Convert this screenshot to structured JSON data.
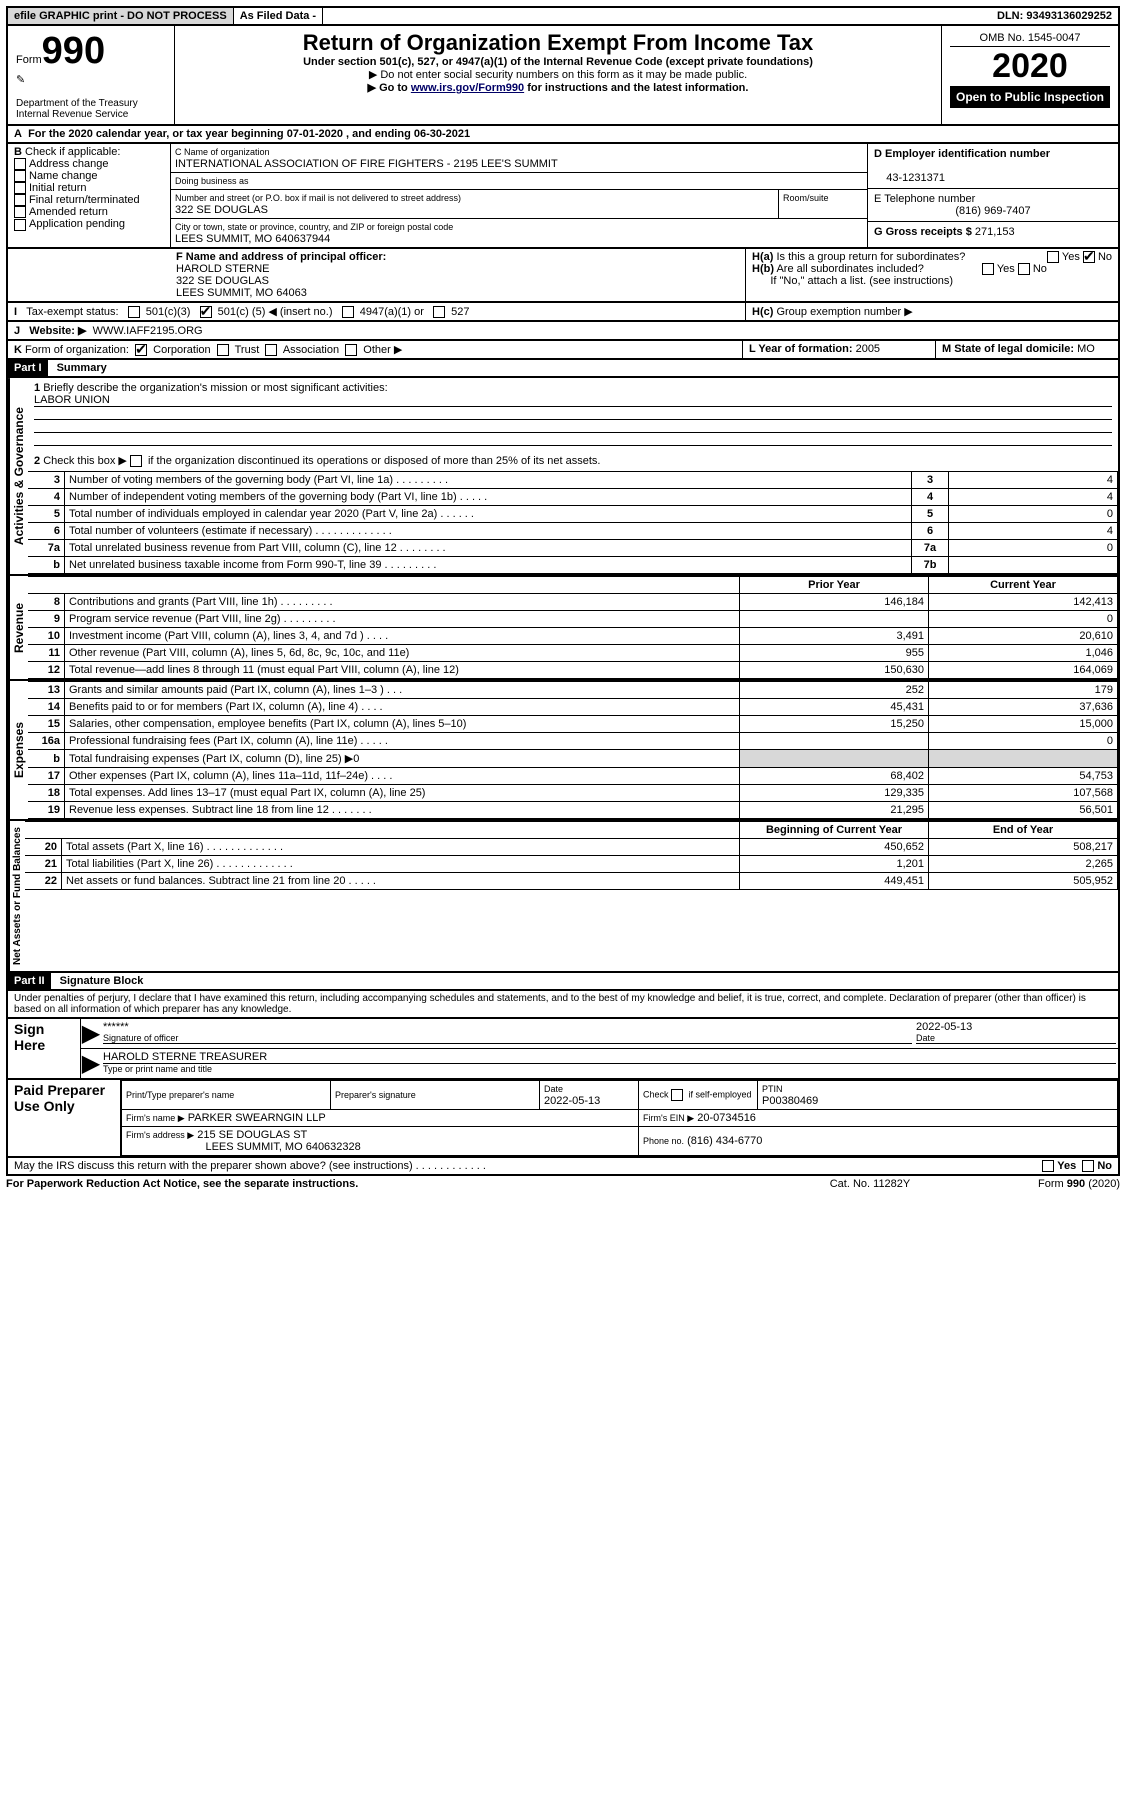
{
  "topbar": {
    "efile": "efile GRAPHIC print - DO NOT PROCESS",
    "asfiled": "As Filed Data -",
    "dln_label": "DLN:",
    "dln": "93493136029252"
  },
  "header": {
    "form_label": "Form",
    "form_number": "990",
    "dept": "Department of the Treasury",
    "irs": "Internal Revenue Service",
    "title": "Return of Organization Exempt From Income Tax",
    "subtitle": "Under section 501(c), 527, or 4947(a)(1) of the Internal Revenue Code (except private foundations)",
    "note1": "▶ Do not enter social security numbers on this form as it may be made public.",
    "note2_pre": "▶ Go to ",
    "note2_link": "www.irs.gov/Form990",
    "note2_post": " for instructions and the latest information.",
    "omb": "OMB No. 1545-0047",
    "year": "2020",
    "open": "Open to Public Inspection"
  },
  "A": {
    "text_pre": "For the 2020 calendar year, or tax year beginning ",
    "begin": "07-01-2020",
    "mid": " , and ending ",
    "end": "06-30-2021"
  },
  "B": {
    "label": "Check if applicable:",
    "opts": [
      "Address change",
      "Name change",
      "Initial return",
      "Final return/terminated",
      "Amended return",
      "Application pending"
    ]
  },
  "C": {
    "name_label": "C Name of organization",
    "name": "INTERNATIONAL ASSOCIATION OF FIRE FIGHTERS - 2195 LEE'S SUMMIT",
    "dba_label": "Doing business as",
    "street_label": "Number and street (or P.O. box if mail is not delivered to street address)",
    "room_label": "Room/suite",
    "street": "322 SE DOUGLAS",
    "city_label": "City or town, state or province, country, and ZIP or foreign postal code",
    "city": "LEES SUMMIT, MO  640637944"
  },
  "D": {
    "label": "D Employer identification number",
    "value": "43-1231371"
  },
  "E": {
    "label": "E Telephone number",
    "value": "(816) 969-7407"
  },
  "G": {
    "label": "G Gross receipts $",
    "value": "271,153"
  },
  "F": {
    "label": "F  Name and address of principal officer:",
    "name": "HAROLD STERNE",
    "street": "322 SE DOUGLAS",
    "city": "LEES SUMMIT, MO  64063"
  },
  "H": {
    "a": "Is this a group return for subordinates?",
    "a_yes": "Yes",
    "a_no": "No",
    "b": "Are all subordinates included?",
    "b_yes": "Yes",
    "b_no": "No",
    "b_note": "If \"No,\" attach a list. (see instructions)",
    "c": "Group exemption number ▶"
  },
  "I": {
    "label": "Tax-exempt status:",
    "o1": "501(c)(3)",
    "o2_pre": "501(c) (",
    "o2_num": "5",
    "o2_post": ") ◀ (insert no.)",
    "o3": "4947(a)(1) or",
    "o4": "527"
  },
  "J": {
    "label": "Website: ▶",
    "value": "WWW.IAFF2195.ORG"
  },
  "K": {
    "label": "Form of organization:",
    "opts": [
      "Corporation",
      "Trust",
      "Association",
      "Other ▶"
    ]
  },
  "L": {
    "label": "L Year of formation:",
    "value": "2005"
  },
  "M": {
    "label": "M State of legal domicile:",
    "value": "MO"
  },
  "partI": {
    "header": "Part I",
    "title": "Summary",
    "l1": "Briefly describe the organization's mission or most significant activities:",
    "l1v": "LABOR UNION",
    "l2": "Check this box ▶         if the organization discontinued its operations or disposed of more than 25% of its net assets.",
    "lines": [
      {
        "n": "3",
        "t": "Number of voting members of the governing body (Part VI, line 1a)   .   .   .   .   .   .   .   .   .",
        "ln": "3",
        "v": "4"
      },
      {
        "n": "4",
        "t": "Number of independent voting members of the governing body (Part VI, line 1b)   .   .   .   .   .",
        "ln": "4",
        "v": "4"
      },
      {
        "n": "5",
        "t": "Total number of individuals employed in calendar year 2020 (Part V, line 2a)   .   .   .   .   .   .",
        "ln": "5",
        "v": "0"
      },
      {
        "n": "6",
        "t": "Total number of volunteers (estimate if necessary)   .   .   .   .   .   .   .   .   .   .   .   .   .",
        "ln": "6",
        "v": "4"
      },
      {
        "n": "7a",
        "t": "Total unrelated business revenue from Part VIII, column (C), line 12   .   .   .   .   .   .   .   .",
        "ln": "7a",
        "v": "0"
      },
      {
        "n": "b",
        "t": "Net unrelated business taxable income from Form 990-T, line 39   .   .   .   .   .   .   .   .   .",
        "ln": "7b",
        "v": ""
      }
    ],
    "prior": "Prior Year",
    "current": "Current Year",
    "rev": [
      {
        "n": "8",
        "t": "Contributions and grants (Part VIII, line 1h)   .   .   .   .   .   .   .   .   .",
        "p": "146,184",
        "c": "142,413"
      },
      {
        "n": "9",
        "t": "Program service revenue (Part VIII, line 2g)   .   .   .   .   .   .   .   .   .",
        "p": "",
        "c": "0"
      },
      {
        "n": "10",
        "t": "Investment income (Part VIII, column (A), lines 3, 4, and 7d )   .   .   .   .",
        "p": "3,491",
        "c": "20,610"
      },
      {
        "n": "11",
        "t": "Other revenue (Part VIII, column (A), lines 5, 6d, 8c, 9c, 10c, and 11e)",
        "p": "955",
        "c": "1,046"
      },
      {
        "n": "12",
        "t": "Total revenue—add lines 8 through 11 (must equal Part VIII, column (A), line 12)",
        "p": "150,630",
        "c": "164,069"
      }
    ],
    "exp": [
      {
        "n": "13",
        "t": "Grants and similar amounts paid (Part IX, column (A), lines 1–3 )   .   .   .",
        "p": "252",
        "c": "179"
      },
      {
        "n": "14",
        "t": "Benefits paid to or for members (Part IX, column (A), line 4)   .   .   .   .",
        "p": "45,431",
        "c": "37,636"
      },
      {
        "n": "15",
        "t": "Salaries, other compensation, employee benefits (Part IX, column (A), lines 5–10)",
        "p": "15,250",
        "c": "15,000"
      },
      {
        "n": "16a",
        "t": "Professional fundraising fees (Part IX, column (A), line 11e)   .   .   .   .   .",
        "p": "",
        "c": "0"
      },
      {
        "n": "b",
        "t": "Total fundraising expenses (Part IX, column (D), line 25) ▶0",
        "p": "",
        "c": "",
        "shadep": true,
        "shadec": true
      },
      {
        "n": "17",
        "t": "Other expenses (Part IX, column (A), lines 11a–11d, 11f–24e)   .   .   .   .",
        "p": "68,402",
        "c": "54,753"
      },
      {
        "n": "18",
        "t": "Total expenses. Add lines 13–17 (must equal Part IX, column (A), line 25)",
        "p": "129,335",
        "c": "107,568"
      },
      {
        "n": "19",
        "t": "Revenue less expenses. Subtract line 18 from line 12 .   .   .   .   .   .   .",
        "p": "21,295",
        "c": "56,501"
      }
    ],
    "begin": "Beginning of Current Year",
    "end": "End of Year",
    "net": [
      {
        "n": "20",
        "t": "Total assets (Part X, line 16)  .   .   .   .   .   .   .   .   .   .   .   .   .",
        "p": "450,652",
        "c": "508,217"
      },
      {
        "n": "21",
        "t": "Total liabilities (Part X, line 26) .   .   .   .   .   .   .   .   .   .   .   .   .",
        "p": "1,201",
        "c": "2,265"
      },
      {
        "n": "22",
        "t": "Net assets or fund balances. Subtract line 21 from line 20 .   .   .   .   .",
        "p": "449,451",
        "c": "505,952"
      }
    ],
    "sections": {
      "governance": "Activities & Governance",
      "revenue": "Revenue",
      "expenses": "Expenses",
      "net": "Net Assets or Fund Balances"
    }
  },
  "partII": {
    "header": "Part II",
    "title": "Signature Block",
    "declaration": "Under penalties of perjury, I declare that I have examined this return, including accompanying schedules and statements, and to the best of my knowledge and belief, it is true, correct, and complete. Declaration of preparer (other than officer) is based on all information of which preparer has any knowledge.",
    "sign_here": "Sign Here",
    "sig_stars": "******",
    "sig_of_officer": "Signature of officer",
    "sig_date": "2022-05-13",
    "date_label": "Date",
    "officer_name": "HAROLD STERNE TREASURER",
    "type_label": "Type or print name and title",
    "paid": "Paid Preparer Use Only",
    "prep_name_label": "Print/Type preparer's name",
    "prep_sig_label": "Preparer's signature",
    "prep_date_label": "Date",
    "prep_date": "2022-05-13",
    "check_self": "Check         if self-employed",
    "ptin_label": "PTIN",
    "ptin": "P00380469",
    "firm_name_label": "Firm's name    ▶",
    "firm_name": "PARKER SWEARNGIN LLP",
    "firm_ein_label": "Firm's EIN ▶",
    "firm_ein": "20-0734516",
    "firm_addr_label": "Firm's address ▶",
    "firm_addr": "215 SE DOUGLAS ST",
    "firm_city": "LEES SUMMIT, MO  640632328",
    "phone_label": "Phone no.",
    "phone": "(816) 434-6770",
    "discuss": "May the IRS discuss this return with the preparer shown above? (see instructions)   .   .   .   .   .   .   .   .   .   .   .   .",
    "yes": "Yes",
    "no": "No"
  },
  "footer": {
    "left": "For Paperwork Reduction Act Notice, see the separate instructions.",
    "mid": "Cat. No. 11282Y",
    "right": "Form 990 (2020)"
  }
}
